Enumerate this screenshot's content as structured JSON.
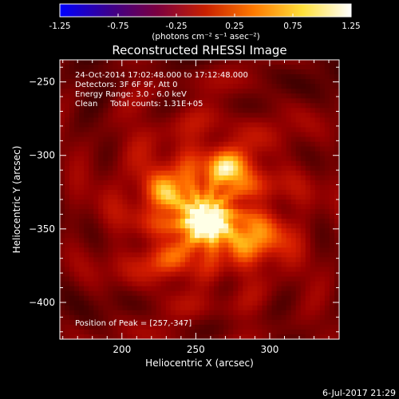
{
  "chart_data": {
    "type": "heatmap",
    "title": "Reconstructed RHESSI Image",
    "xlabel": "Heliocentric X (arcsec)",
    "ylabel": "Heliocentric Y (arcsec)",
    "xlim": [
      158,
      347
    ],
    "ylim": [
      -425,
      -235
    ],
    "xticks": [
      200,
      250,
      300
    ],
    "yticks": [
      -250,
      -300,
      -350,
      -400
    ],
    "colorbar": {
      "range": [
        -1.25,
        1.25
      ],
      "ticks": [
        -1.25,
        -0.75,
        -0.25,
        0.25,
        0.75,
        1.25
      ],
      "tick_labels": [
        "-1.25",
        "-0.75",
        "-0.25",
        "0.25",
        "0.75",
        "1.25"
      ],
      "unit_label": "(photons cm⁻² s⁻¹ asec⁻²)",
      "colormap": [
        "#0000ff",
        "#3a008f",
        "#7a0040",
        "#c82000",
        "#ff7a00",
        "#ffe03a",
        "#ffffff"
      ]
    },
    "annotations": [
      "24-Oct-2014 17:02:48.000 to 17:12:48.000",
      "Detectors: 3F 6F 9F, Att 0",
      "Energy Range: 3.0 - 6.0 keV",
      "Clean     Total counts: 1.31E+05"
    ],
    "peak_label": "Position of Peak = [257,-347]",
    "peak": [
      257,
      -347
    ],
    "sources": [
      {
        "x": 257,
        "y": -347,
        "amp": 1.0,
        "sx": 13,
        "sy": 11
      },
      {
        "x": 273,
        "y": -310,
        "amp": 0.75,
        "sx": 11,
        "sy": 9
      },
      {
        "x": 232,
        "y": -325,
        "amp": 0.55,
        "sx": 11,
        "sy": 10
      },
      {
        "x": 292,
        "y": -358,
        "amp": 0.62,
        "sx": 14,
        "sy": 10
      },
      {
        "x": 230,
        "y": -373,
        "amp": 0.35,
        "sx": 12,
        "sy": 9
      },
      {
        "x": 255,
        "y": -330,
        "amp": 0.35,
        "sx": 35,
        "sy": 32
      }
    ],
    "background_level": 0.42
  },
  "footer": {
    "date": "6-Jul-2017 21:29"
  }
}
